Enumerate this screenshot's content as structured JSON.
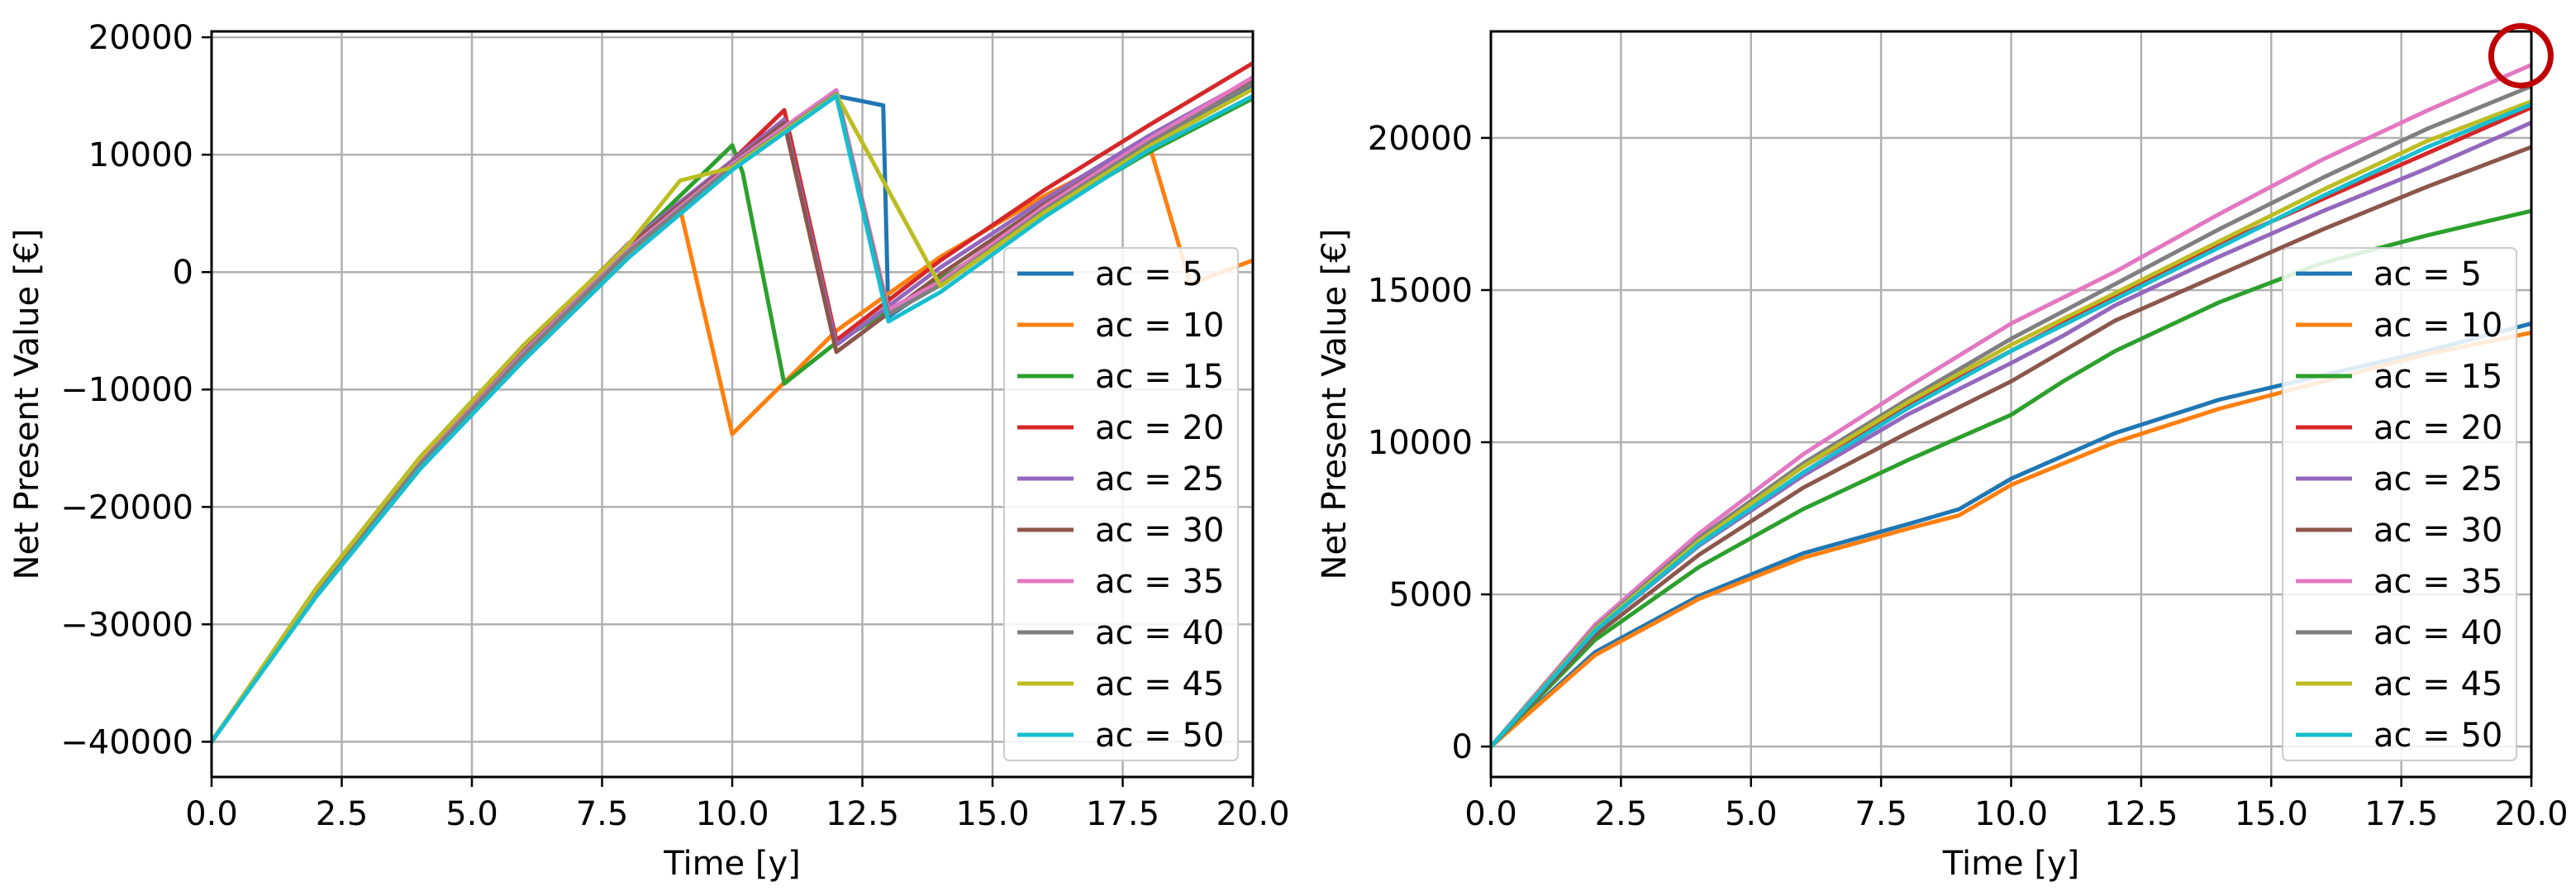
{
  "colors": {
    "ac5": "#1f77b4",
    "ac10": "#ff7f0e",
    "ac15": "#2ca02c",
    "ac20": "#d62728",
    "ac25": "#9467bd",
    "ac30": "#8c564b",
    "ac35": "#e377c2",
    "ac40": "#7f7f7f",
    "ac45": "#bcbd22",
    "ac50": "#17becf",
    "grid": "#b0b0b0",
    "highlight": "#c00000"
  },
  "chart_data": [
    {
      "type": "line",
      "xlabel": "Time [y]",
      "ylabel": "Net Present Value [€]",
      "xlim": [
        0,
        20
      ],
      "ylim": [
        -43000,
        20500
      ],
      "xticks": [
        0,
        2.5,
        5,
        7.5,
        10,
        12.5,
        15,
        17.5,
        20
      ],
      "xtick_labels": [
        "0.0",
        "2.5",
        "5.0",
        "7.5",
        "10.0",
        "12.5",
        "15.0",
        "17.5",
        "20.0"
      ],
      "yticks": [
        -40000,
        -30000,
        -20000,
        -10000,
        0,
        10000,
        20000
      ],
      "ytick_labels": [
        "−40000",
        "−30000",
        "−20000",
        "−10000",
        "0",
        "10000",
        "20000"
      ],
      "grid": true,
      "legend": "right",
      "series": [
        {
          "name": "ac = 5",
          "color_key": "ac5",
          "x": [
            0,
            2,
            4,
            6,
            8,
            10,
            12,
            12.9,
            13,
            14,
            16,
            18,
            20
          ],
          "y": [
            -40000,
            -27500,
            -16700,
            -7500,
            1200,
            8900,
            15000,
            14200,
            -3800,
            -800,
            5500,
            11000,
            15800
          ]
        },
        {
          "name": "ac = 10",
          "color_key": "ac10",
          "x": [
            0,
            2,
            4,
            6,
            8,
            9,
            10,
            12,
            14,
            16,
            18,
            18.8,
            20
          ],
          "y": [
            -40000,
            -27400,
            -16500,
            -7200,
            1400,
            5400,
            -13800,
            -5000,
            1300,
            6500,
            11000,
            -1000,
            1000
          ]
        },
        {
          "name": "ac = 15",
          "color_key": "ac15",
          "x": [
            0,
            2,
            4,
            6,
            8,
            10,
            10.2,
            11,
            12,
            14,
            16,
            18,
            20
          ],
          "y": [
            -40000,
            -27000,
            -15800,
            -6200,
            2200,
            10800,
            8500,
            -9500,
            -6000,
            -600,
            5000,
            10200,
            14800
          ]
        },
        {
          "name": "ac = 20",
          "color_key": "ac20",
          "x": [
            0,
            2,
            4,
            6,
            8,
            10,
            11,
            12,
            14,
            16,
            18,
            20
          ],
          "y": [
            -40000,
            -27200,
            -16000,
            -6400,
            2400,
            9500,
            13800,
            -5800,
            1000,
            7000,
            12500,
            17800
          ]
        },
        {
          "name": "ac = 25",
          "color_key": "ac25",
          "x": [
            0,
            2,
            4,
            6,
            8,
            10,
            11,
            12,
            14,
            16,
            18,
            20
          ],
          "y": [
            -40000,
            -27200,
            -16000,
            -6400,
            2400,
            9500,
            13000,
            -6200,
            400,
            6200,
            11600,
            16500
          ]
        },
        {
          "name": "ac = 30",
          "color_key": "ac30",
          "x": [
            0,
            2,
            4,
            6,
            8,
            10,
            11,
            12,
            14,
            16,
            18,
            20
          ],
          "y": [
            -40000,
            -27300,
            -16100,
            -6500,
            2200,
            9300,
            12700,
            -6800,
            -200,
            5800,
            11200,
            16200
          ]
        },
        {
          "name": "ac = 35",
          "color_key": "ac35",
          "x": [
            0,
            2,
            4,
            6,
            8,
            10,
            12,
            13,
            14,
            16,
            18,
            20
          ],
          "y": [
            -40000,
            -27300,
            -16300,
            -6800,
            1900,
            9200,
            15500,
            -3200,
            -800,
            5600,
            11300,
            16600
          ]
        },
        {
          "name": "ac = 40",
          "color_key": "ac40",
          "x": [
            0,
            2,
            4,
            6,
            8,
            10,
            12,
            13,
            14,
            16,
            18,
            20
          ],
          "y": [
            -40000,
            -27400,
            -16400,
            -7000,
            1700,
            9000,
            15200,
            -3600,
            -1100,
            5300,
            11000,
            16100
          ]
        },
        {
          "name": "ac = 45",
          "color_key": "ac45",
          "x": [
            0,
            2,
            4,
            6,
            8,
            9,
            10,
            12,
            14,
            16,
            18,
            20
          ],
          "y": [
            -40000,
            -27000,
            -15800,
            -6200,
            2300,
            7800,
            8900,
            15100,
            -1200,
            5100,
            10700,
            15600
          ]
        },
        {
          "name": "ac = 50",
          "color_key": "ac50",
          "x": [
            0,
            2,
            4,
            6,
            8,
            10,
            12,
            13,
            14,
            16,
            18,
            20
          ],
          "y": [
            -40000,
            -27700,
            -16800,
            -7500,
            1200,
            8700,
            15000,
            -4200,
            -1700,
            4700,
            10400,
            15000
          ]
        }
      ]
    },
    {
      "type": "line",
      "xlabel": "Time [y]",
      "ylabel": "Net Present Value [€]",
      "xlim": [
        0,
        20
      ],
      "ylim": [
        -1000,
        23500
      ],
      "xticks": [
        0,
        2.5,
        5,
        7.5,
        10,
        12.5,
        15,
        17.5,
        20
      ],
      "xtick_labels": [
        "0.0",
        "2.5",
        "5.0",
        "7.5",
        "10.0",
        "12.5",
        "15.0",
        "17.5",
        "20.0"
      ],
      "yticks": [
        0,
        5000,
        10000,
        15000,
        20000
      ],
      "ytick_labels": [
        "0",
        "5000",
        "10000",
        "15000",
        "20000"
      ],
      "grid": true,
      "legend": "right",
      "annotations": [
        {
          "type": "circle",
          "x": 19.8,
          "y": 22700,
          "color_key": "highlight"
        }
      ],
      "series": [
        {
          "name": "ac = 5",
          "color_key": "ac5",
          "x": [
            0,
            2,
            4,
            6,
            8,
            9,
            10,
            12,
            14,
            16,
            18,
            20
          ],
          "y": [
            0,
            3100,
            4950,
            6350,
            7300,
            7800,
            8800,
            10300,
            11400,
            12200,
            13000,
            13900
          ]
        },
        {
          "name": "ac = 10",
          "color_key": "ac10",
          "x": [
            0,
            2,
            4,
            6,
            8,
            9,
            10,
            12,
            14,
            16,
            18,
            20
          ],
          "y": [
            0,
            3000,
            4850,
            6200,
            7150,
            7600,
            8600,
            10000,
            11100,
            12000,
            12900,
            13600
          ]
        },
        {
          "name": "ac = 15",
          "color_key": "ac15",
          "x": [
            0,
            2,
            4,
            6,
            8,
            10,
            11,
            12,
            14,
            16,
            18,
            20
          ],
          "y": [
            0,
            3500,
            5900,
            7800,
            9400,
            10900,
            12000,
            13000,
            14600,
            15900,
            16800,
            17600
          ]
        },
        {
          "name": "ac = 20",
          "color_key": "ac20",
          "x": [
            0,
            2,
            4,
            6,
            8,
            10,
            12,
            14,
            16,
            18,
            20
          ],
          "y": [
            0,
            3900,
            6800,
            9200,
            11200,
            13000,
            14800,
            16500,
            18000,
            19500,
            21000
          ]
        },
        {
          "name": "ac = 25",
          "color_key": "ac25",
          "x": [
            0,
            2,
            4,
            6,
            8,
            10,
            11,
            12,
            14,
            16,
            18,
            20
          ],
          "y": [
            0,
            3800,
            6600,
            8900,
            10900,
            12600,
            13500,
            14500,
            16100,
            17600,
            19000,
            20500
          ]
        },
        {
          "name": "ac = 30",
          "color_key": "ac30",
          "x": [
            0,
            2,
            4,
            6,
            8,
            10,
            11,
            12,
            14,
            16,
            18,
            20
          ],
          "y": [
            0,
            3650,
            6300,
            8500,
            10300,
            12000,
            13000,
            14000,
            15500,
            17000,
            18400,
            19700
          ]
        },
        {
          "name": "ac = 35",
          "color_key": "ac35",
          "x": [
            0,
            2,
            4,
            6,
            8,
            10,
            12,
            14,
            16,
            18,
            20
          ],
          "y": [
            0,
            4000,
            7000,
            9600,
            11800,
            13900,
            15600,
            17500,
            19300,
            20900,
            22400
          ]
        },
        {
          "name": "ac = 40",
          "color_key": "ac40",
          "x": [
            0,
            2,
            4,
            6,
            8,
            10,
            12,
            14,
            16,
            18,
            20
          ],
          "y": [
            0,
            3900,
            6850,
            9300,
            11400,
            13400,
            15200,
            17000,
            18700,
            20300,
            21700
          ]
        },
        {
          "name": "ac = 45",
          "color_key": "ac45",
          "x": [
            0,
            2,
            4,
            6,
            8,
            10,
            12,
            14,
            16,
            18,
            20
          ],
          "y": [
            0,
            3850,
            6750,
            9200,
            11300,
            13200,
            14900,
            16600,
            18300,
            19900,
            21200
          ]
        },
        {
          "name": "ac = 50",
          "color_key": "ac50",
          "x": [
            0,
            2,
            4,
            6,
            8,
            10,
            12,
            14,
            16,
            18,
            20
          ],
          "y": [
            0,
            3800,
            6650,
            9000,
            11100,
            13000,
            14700,
            16400,
            18100,
            19700,
            21100
          ]
        }
      ]
    }
  ]
}
